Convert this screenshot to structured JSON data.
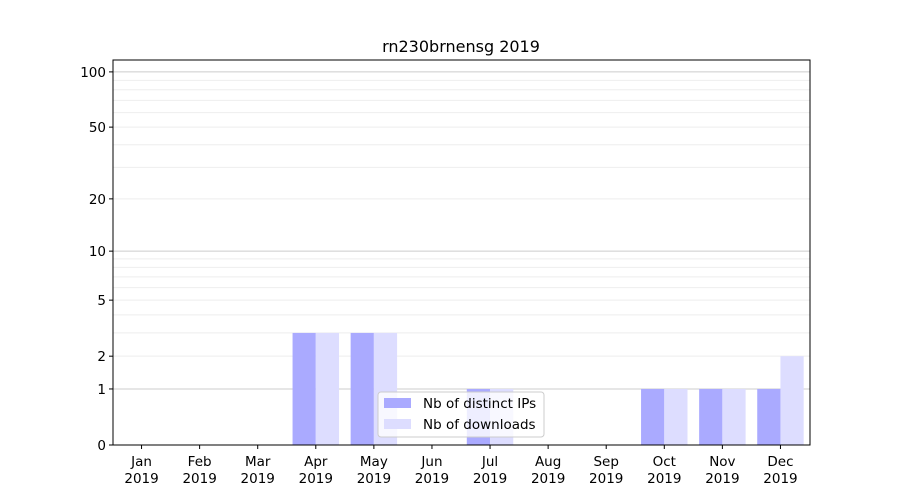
{
  "chart_data": {
    "type": "bar",
    "title": "rn230brnensg 2019",
    "xlabel": "",
    "ylabel": "",
    "yscale": "symlog",
    "ylim": [
      0,
      116
    ],
    "yticks": [
      0,
      1,
      2,
      5,
      10,
      20,
      50,
      100
    ],
    "ytick_labels": [
      "0",
      "1",
      "2",
      "5",
      "10",
      "20",
      "50",
      "100"
    ],
    "categories": [
      [
        "Jan",
        "2019"
      ],
      [
        "Feb",
        "2019"
      ],
      [
        "Mar",
        "2019"
      ],
      [
        "Apr",
        "2019"
      ],
      [
        "May",
        "2019"
      ],
      [
        "Jun",
        "2019"
      ],
      [
        "Jul",
        "2019"
      ],
      [
        "Aug",
        "2019"
      ],
      [
        "Sep",
        "2019"
      ],
      [
        "Oct",
        "2019"
      ],
      [
        "Nov",
        "2019"
      ],
      [
        "Dec",
        "2019"
      ]
    ],
    "series": [
      {
        "name": "Nb of distinct IPs",
        "color": "#aaaaff",
        "values": [
          0,
          0,
          0,
          3,
          3,
          0,
          1,
          0,
          0,
          1,
          1,
          1
        ]
      },
      {
        "name": "Nb of downloads",
        "color": "#ddddff",
        "values": [
          0,
          0,
          0,
          3,
          3,
          0,
          1,
          0,
          0,
          1,
          1,
          2
        ]
      }
    ],
    "legend": "bottom-center",
    "grid": true
  }
}
